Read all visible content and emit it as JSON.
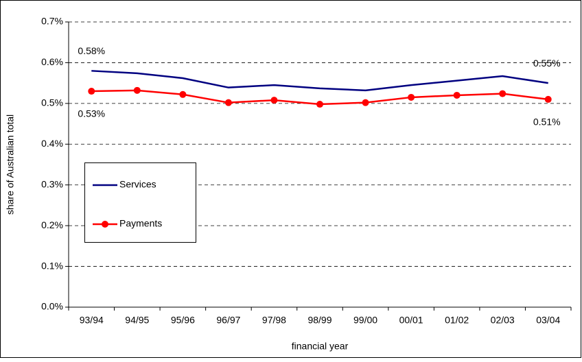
{
  "chart_data": {
    "type": "line",
    "x_label": "financial year",
    "y_label": "share of Australian total",
    "categories": [
      "93/94",
      "94/95",
      "95/96",
      "96/97",
      "97/98",
      "98/99",
      "99/00",
      "00/01",
      "01/02",
      "02/03",
      "03/04"
    ],
    "series": [
      {
        "name": "Services",
        "color": "#000080",
        "marker": false,
        "values": [
          0.58,
          0.574,
          0.562,
          0.539,
          0.545,
          0.537,
          0.532,
          0.545,
          0.556,
          0.567,
          0.55
        ],
        "value_labels": [
          "0.58%",
          null,
          null,
          null,
          null,
          null,
          null,
          null,
          null,
          null,
          "0.55%"
        ]
      },
      {
        "name": "Payments",
        "color": "#ff0000",
        "marker": true,
        "values": [
          0.53,
          0.532,
          0.522,
          0.502,
          0.508,
          0.498,
          0.502,
          0.515,
          0.52,
          0.524,
          0.51
        ],
        "value_labels": [
          "0.53%",
          null,
          null,
          null,
          null,
          null,
          null,
          null,
          null,
          null,
          "0.51%"
        ]
      }
    ],
    "ylim": [
      0,
      0.7
    ],
    "yticks": [
      {
        "value": 0,
        "label": "0.0%"
      },
      {
        "value": 0.1,
        "label": "0.1%"
      },
      {
        "value": 0.2,
        "label": "0.2%"
      },
      {
        "value": 0.3,
        "label": "0.3%"
      },
      {
        "value": 0.4,
        "label": "0.4%"
      },
      {
        "value": 0.5,
        "label": "0.5%"
      },
      {
        "value": 0.6,
        "label": "0.6%"
      },
      {
        "value": 0.7,
        "label": "0.7%"
      }
    ],
    "grid": true
  }
}
